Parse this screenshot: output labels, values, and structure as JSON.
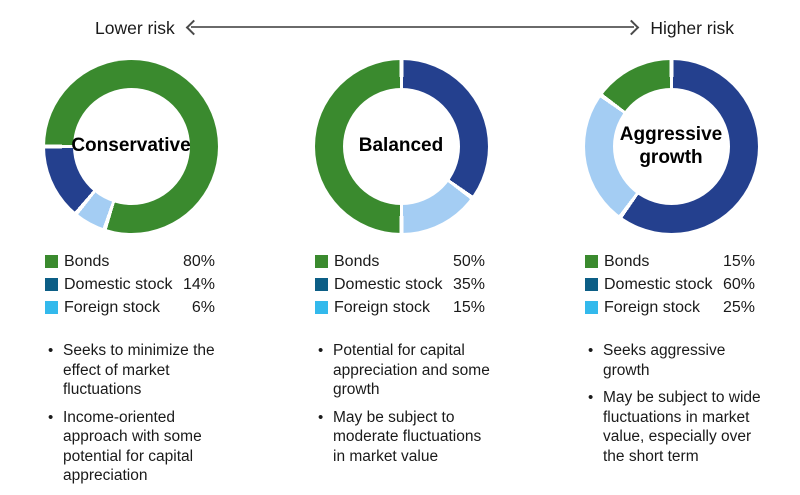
{
  "risk_scale": {
    "lower_label": "Lower risk",
    "higher_label": "Higher risk"
  },
  "colors": {
    "text": "#1a1a1a",
    "arrow_line": "#6a6a6a",
    "donut_bonds": "#3a8a2e",
    "donut_domestic": "#24408e",
    "donut_foreign": "#a4cdf3",
    "legend_bonds": "#3a8a2e",
    "legend_domestic": "#0c5e86",
    "legend_foreign": "#33b9ec"
  },
  "portfolios": [
    {
      "name": "Conservative",
      "donut_start_deg": 270,
      "slices": [
        {
          "key": "donut_bonds",
          "pct": 80
        },
        {
          "key": "donut_foreign",
          "pct": 6
        },
        {
          "key": "donut_domestic",
          "pct": 14
        }
      ],
      "legend": [
        {
          "label": "Bonds",
          "pct": "80%",
          "swatch": "legend_bonds"
        },
        {
          "label": "Domestic stock",
          "pct": "14%",
          "swatch": "legend_domestic"
        },
        {
          "label": "Foreign stock",
          "pct": "6%",
          "swatch": "legend_foreign"
        }
      ],
      "bullets": [
        "Seeks to minimize the effect of market fluctuations",
        "Income-oriented approach with some potential for capital appreciation"
      ]
    },
    {
      "name": "Balanced",
      "donut_start_deg": 0,
      "slices": [
        {
          "key": "donut_domestic",
          "pct": 35
        },
        {
          "key": "donut_foreign",
          "pct": 15
        },
        {
          "key": "donut_bonds",
          "pct": 50
        }
      ],
      "legend": [
        {
          "label": "Bonds",
          "pct": "50%",
          "swatch": "legend_bonds"
        },
        {
          "label": "Domestic stock",
          "pct": "35%",
          "swatch": "legend_domestic"
        },
        {
          "label": "Foreign stock",
          "pct": "15%",
          "swatch": "legend_foreign"
        }
      ],
      "bullets": [
        "Potential for capital appreciation and some growth",
        "May be subject to moderate fluctuations in market value"
      ]
    },
    {
      "name": "Aggressive growth",
      "donut_start_deg": 0,
      "slices": [
        {
          "key": "donut_domestic",
          "pct": 60
        },
        {
          "key": "donut_foreign",
          "pct": 25
        },
        {
          "key": "donut_bonds",
          "pct": 15
        }
      ],
      "legend": [
        {
          "label": "Bonds",
          "pct": "15%",
          "swatch": "legend_bonds"
        },
        {
          "label": "Domestic stock",
          "pct": "60%",
          "swatch": "legend_domestic"
        },
        {
          "label": "Foreign stock",
          "pct": "25%",
          "swatch": "legend_foreign"
        }
      ],
      "bullets": [
        "Seeks aggressive growth",
        "May be subject to wide fluctuations in market value, especially over the short term"
      ]
    }
  ],
  "chart_data": [
    {
      "type": "pie",
      "title": "Conservative",
      "categories": [
        "Bonds",
        "Domestic stock",
        "Foreign stock"
      ],
      "values": [
        80,
        14,
        6
      ],
      "unit": "%",
      "legend_position": "below",
      "donut": true
    },
    {
      "type": "pie",
      "title": "Balanced",
      "categories": [
        "Bonds",
        "Domestic stock",
        "Foreign stock"
      ],
      "values": [
        50,
        35,
        15
      ],
      "unit": "%",
      "legend_position": "below",
      "donut": true
    },
    {
      "type": "pie",
      "title": "Aggressive growth",
      "categories": [
        "Bonds",
        "Domestic stock",
        "Foreign stock"
      ],
      "values": [
        15,
        60,
        25
      ],
      "unit": "%",
      "legend_position": "below",
      "donut": true
    }
  ]
}
